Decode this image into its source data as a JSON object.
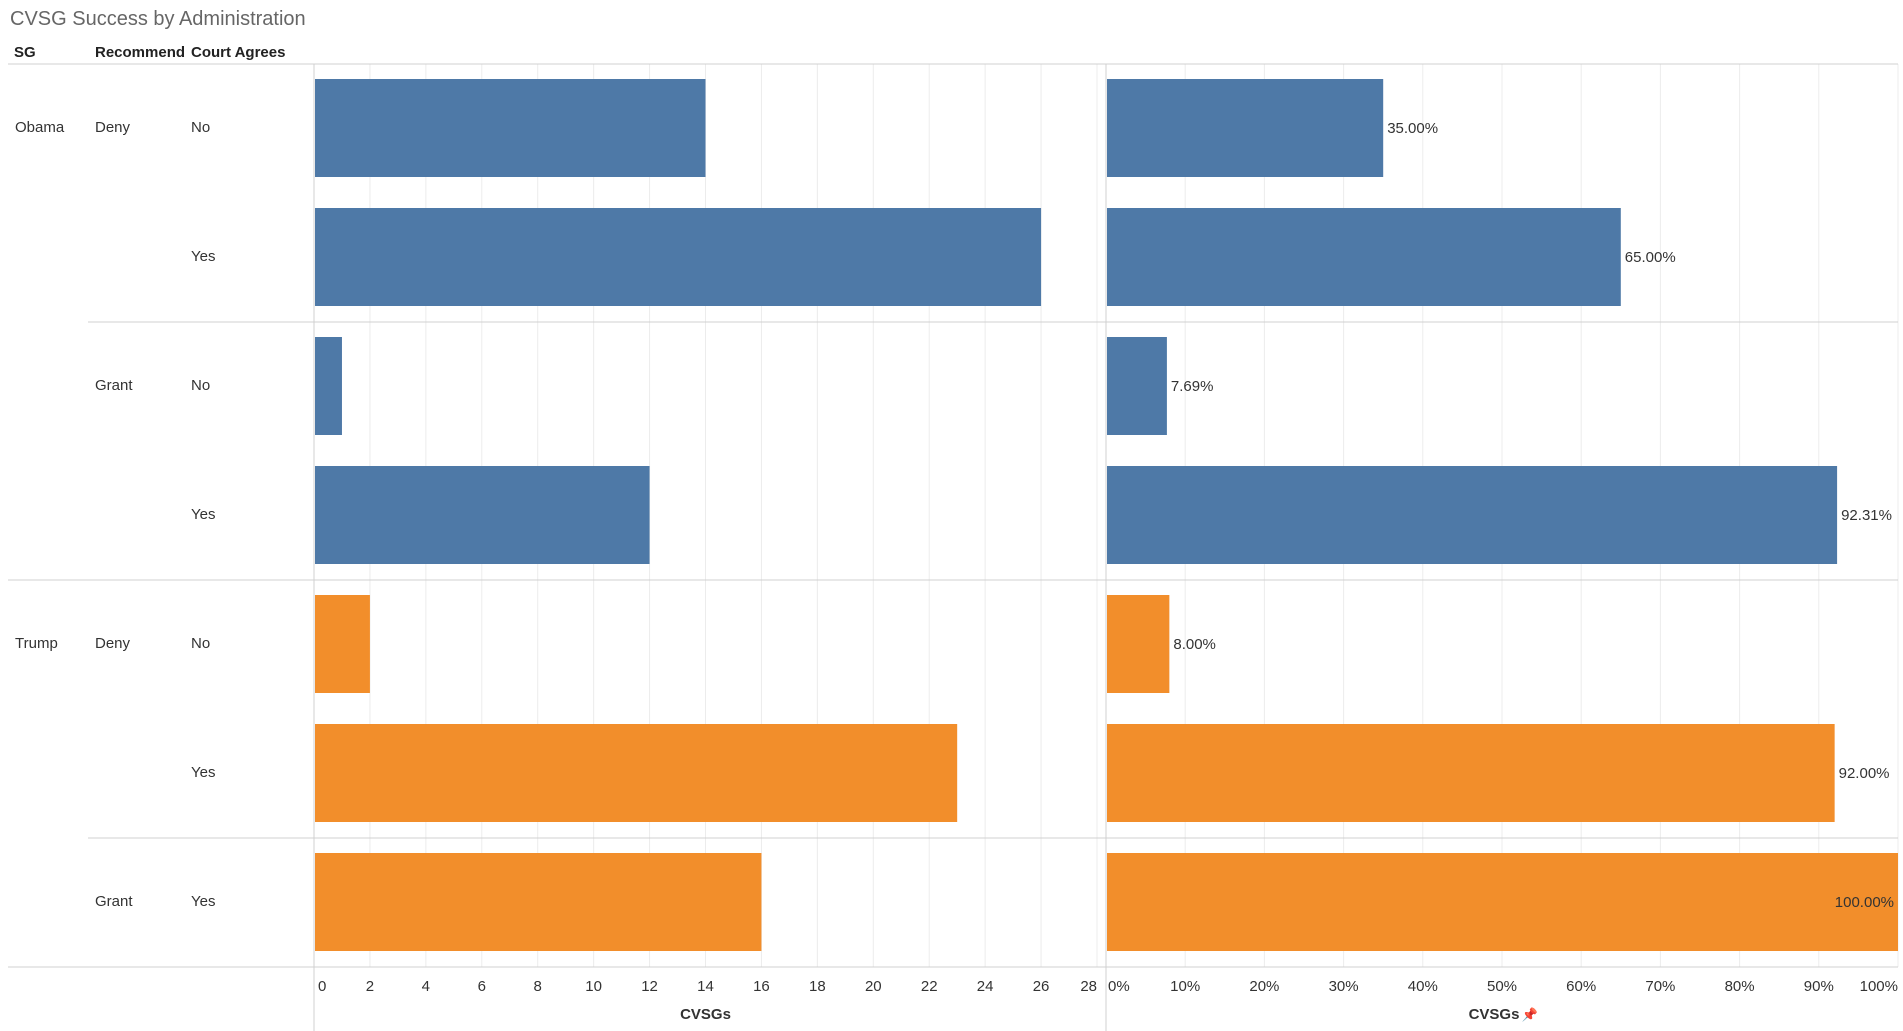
{
  "title": "CVSG Success by Administration",
  "headers": {
    "sg": "SG",
    "recommend": "Recommend",
    "court": "Court Agrees"
  },
  "colors": {
    "obama": "#4e79a7",
    "trump": "#f28e2b",
    "grid": "#ececec",
    "line": "#d0d0d0",
    "text": "#333333"
  },
  "chart_data": {
    "type": "bar",
    "orientation": "horizontal",
    "title": "CVSG Success by Administration",
    "rows": [
      {
        "sg": "Obama",
        "recommend": "Deny",
        "court": "No",
        "count": 14,
        "pct": 35.0,
        "pct_label": "35.00%"
      },
      {
        "sg": "Obama",
        "recommend": "Deny",
        "court": "Yes",
        "count": 26,
        "pct": 65.0,
        "pct_label": "65.00%"
      },
      {
        "sg": "Obama",
        "recommend": "Grant",
        "court": "No",
        "count": 1,
        "pct": 7.69,
        "pct_label": "7.69%"
      },
      {
        "sg": "Obama",
        "recommend": "Grant",
        "court": "Yes",
        "count": 12,
        "pct": 92.31,
        "pct_label": "92.31%"
      },
      {
        "sg": "Trump",
        "recommend": "Deny",
        "court": "No",
        "count": 2,
        "pct": 8.0,
        "pct_label": "8.00%"
      },
      {
        "sg": "Trump",
        "recommend": "Deny",
        "court": "Yes",
        "count": 23,
        "pct": 92.0,
        "pct_label": "92.00%"
      },
      {
        "sg": "Trump",
        "recommend": "Grant",
        "court": "Yes",
        "count": 16,
        "pct": 100.0,
        "pct_label": "100.00%"
      }
    ],
    "left_axis": {
      "xlabel": "CVSGs",
      "xlim": [
        0,
        28
      ],
      "ticks": [
        0,
        2,
        4,
        6,
        8,
        10,
        12,
        14,
        16,
        18,
        20,
        22,
        24,
        26,
        28
      ],
      "tick_labels": [
        "0",
        "2",
        "4",
        "6",
        "8",
        "10",
        "12",
        "14",
        "16",
        "18",
        "20",
        "22",
        "24",
        "26",
        "28"
      ]
    },
    "right_axis": {
      "xlabel": "CVSGs",
      "xlabel_icon": "📌",
      "xlim": [
        0,
        100
      ],
      "ticks": [
        0,
        10,
        20,
        30,
        40,
        50,
        60,
        70,
        80,
        90,
        100
      ],
      "tick_labels": [
        "0%",
        "10%",
        "20%",
        "30%",
        "40%",
        "50%",
        "60%",
        "70%",
        "80%",
        "90%",
        "100%"
      ]
    }
  }
}
